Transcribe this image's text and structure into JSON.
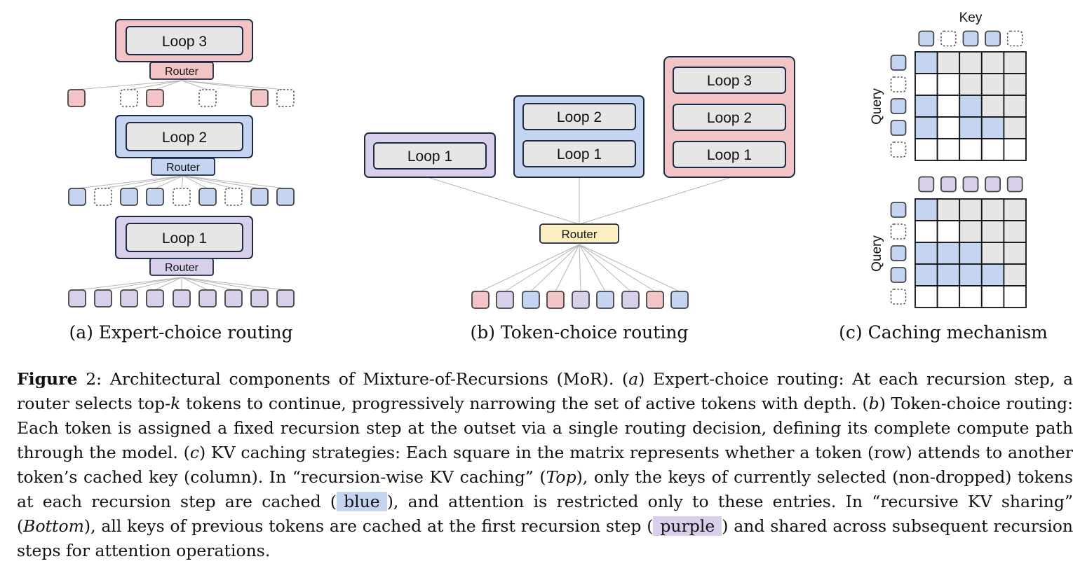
{
  "colors": {
    "pink": "#f2c4c5",
    "blue": "#c5d5f1",
    "purple": "#d8d0ea",
    "yellow": "#fcefc2",
    "gray": "#e6e6e6",
    "border": "#1d2a44"
  },
  "panel_a": {
    "caption": "(a) Expert-choice routing",
    "loop3": "Loop 3",
    "loop2": "Loop 2",
    "loop1": "Loop 1",
    "router3": "Router",
    "router2": "Router",
    "router1": "Router"
  },
  "panel_b": {
    "caption": "(b) Token-choice routing",
    "group1": [
      "Loop 1"
    ],
    "group2": [
      "Loop 2",
      "Loop 1"
    ],
    "group3": [
      "Loop 3",
      "Loop 2",
      "Loop 1"
    ],
    "router": "Router"
  },
  "panel_c": {
    "caption": "(c) Caching mechanism",
    "key_label": "Key",
    "query_label_top": "Query",
    "query_label_bottom": "Query"
  },
  "caption": {
    "label": "Figure",
    "number": "2:",
    "s1": "Architectural components of Mixture-of-Recursions (MoR). (",
    "a": "a",
    "s2": ") Expert-choice routing: At each recursion step, a router selects top-",
    "k": "k",
    "s3": " tokens to continue, progressively narrowing the set of active tokens with depth. (",
    "b": "b",
    "s4": ") Token-choice routing: Each token is assigned a fixed recursion step at the outset via a single routing decision, defining its complete compute path through the model. (",
    "c": "c",
    "s5": ") KV caching strategies: Each square in the matrix represents whether a token (row) attends to another token’s cached key (column). In “recursion-wise KV caching” (",
    "top": "Top",
    "s6": "), only the keys of currently selected (non-dropped) tokens at each recursion step are cached (",
    "blue": "blue",
    "s7": "), and attention is restricted only to these entries. In “recursive KV sharing” (",
    "bottom": "Bottom",
    "s8": "), all keys of previous tokens are cached at the first recursion step (",
    "purple": "purple",
    "s9": ") and shared across subsequent recursion steps for attention operations."
  }
}
